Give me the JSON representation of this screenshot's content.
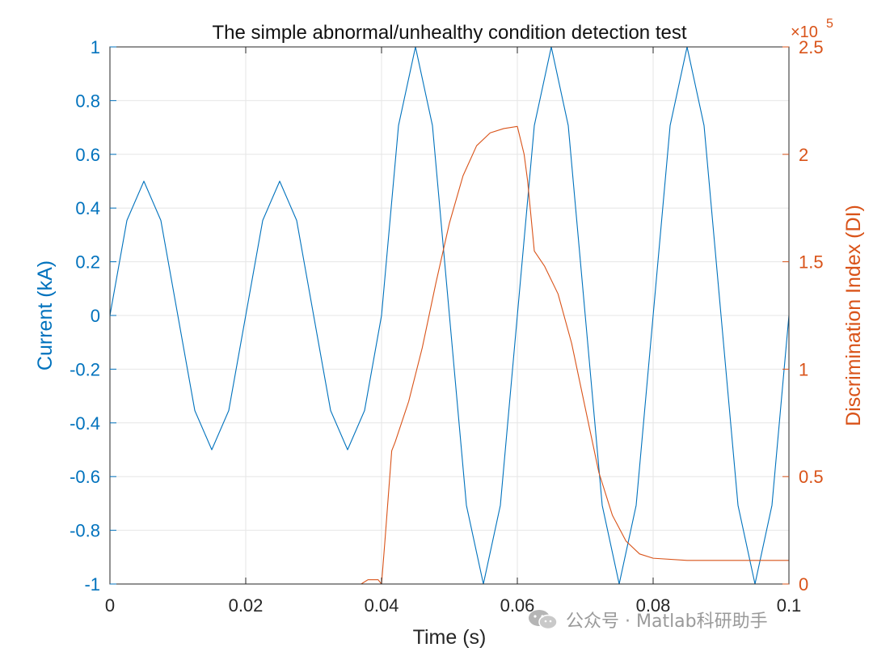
{
  "chart_data": {
    "type": "line",
    "title": "The simple abnormal/unhealthy condition detection test",
    "xlabel": "Time (s)",
    "ylabel_left": "Current (kA)",
    "ylabel_right": "Discrimination Index (DI)",
    "right_axis_multiplier": "×10",
    "right_axis_exponent": "5",
    "xlim": [
      0,
      0.1
    ],
    "ylim_left": [
      -1,
      1
    ],
    "ylim_right": [
      0,
      250000
    ],
    "grid": true,
    "x_ticks": [
      "0",
      "0.02",
      "0.04",
      "0.06",
      "0.08",
      "0.1"
    ],
    "x_tick_values": [
      0,
      0.02,
      0.04,
      0.06,
      0.08,
      0.1
    ],
    "y_left_ticks": [
      "-1",
      "-0.8",
      "-0.6",
      "-0.4",
      "-0.2",
      "0",
      "0.2",
      "0.4",
      "0.6",
      "0.8",
      "1"
    ],
    "y_left_tick_values": [
      -1,
      -0.8,
      -0.6,
      -0.4,
      -0.2,
      0,
      0.2,
      0.4,
      0.6,
      0.8,
      1
    ],
    "y_right_ticks": [
      "0",
      "0.5",
      "1",
      "1.5",
      "2",
      "2.5"
    ],
    "y_right_tick_values": [
      0,
      50000,
      100000,
      150000,
      200000,
      250000
    ],
    "colors": {
      "current": "#0072BD",
      "di": "#D95319",
      "grid": "#e6e6e6",
      "axis": "#262626"
    },
    "series": [
      {
        "axis": "left",
        "x": [
          0,
          0.0025,
          0.005,
          0.0075,
          0.01,
          0.0125,
          0.015,
          0.0175,
          0.02,
          0.0225,
          0.025,
          0.0275,
          0.03,
          0.0325,
          0.035,
          0.0375,
          0.04,
          0.0425,
          0.045,
          0.0475,
          0.05,
          0.0525,
          0.055,
          0.0575,
          0.06,
          0.0625,
          0.065,
          0.0675,
          0.07,
          0.0725,
          0.075,
          0.0775,
          0.08,
          0.0825,
          0.085,
          0.0875,
          0.09,
          0.0925,
          0.095,
          0.0975,
          0.1
        ],
        "y": [
          0,
          0.354,
          0.5,
          0.354,
          0,
          -0.354,
          -0.5,
          -0.354,
          0,
          0.354,
          0.5,
          0.354,
          0,
          -0.354,
          -0.5,
          -0.354,
          0,
          0.707,
          1,
          0.707,
          0,
          -0.707,
          -1,
          -0.707,
          0,
          0.707,
          1,
          0.707,
          0,
          -0.707,
          -1,
          -0.707,
          0,
          0.707,
          1,
          0.707,
          0,
          -0.707,
          -1,
          -0.707,
          0
        ]
      },
      {
        "axis": "right",
        "x": [
          0,
          0.037,
          0.038,
          0.0395,
          0.04,
          0.0405,
          0.0415,
          0.042,
          0.044,
          0.046,
          0.048,
          0.05,
          0.052,
          0.054,
          0.056,
          0.058,
          0.06,
          0.061,
          0.0615,
          0.0625,
          0.064,
          0.066,
          0.068,
          0.07,
          0.072,
          0.074,
          0.076,
          0.078,
          0.08,
          0.085,
          0.09,
          0.1
        ],
        "y": [
          0,
          0,
          2000,
          2000,
          0,
          20000,
          62000,
          66000,
          85000,
          110000,
          140000,
          168000,
          190000,
          204000,
          210000,
          212000,
          213000,
          200000,
          188000,
          155000,
          148000,
          135000,
          112000,
          82000,
          52000,
          32000,
          20000,
          14000,
          12000,
          11000,
          11000,
          11000
        ]
      }
    ]
  },
  "watermark": {
    "text": "公众号 · Matlab科研助手"
  }
}
